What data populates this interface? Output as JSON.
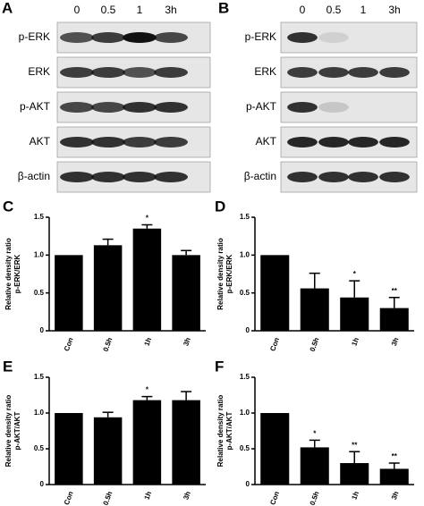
{
  "panels": {
    "A": {
      "label": "A",
      "lanes": [
        "0",
        "0.5",
        "1",
        "3h"
      ],
      "rows": [
        "p-ERK",
        "ERK",
        "p-AKT",
        "AKT",
        "β-actin"
      ]
    },
    "B": {
      "label": "B",
      "lanes": [
        "0",
        "0.5",
        "1",
        "3h"
      ],
      "rows": [
        "p-ERK",
        "ERK",
        "p-AKT",
        "AKT",
        "β-actin"
      ]
    }
  },
  "chart_data": [
    {
      "type": "bar",
      "panel": "C",
      "ylabel": [
        "Relative density ratio",
        "p-ERK/ERK"
      ],
      "categories": [
        "Con",
        "0.5h",
        "1h",
        "3h"
      ],
      "values": [
        1.0,
        1.13,
        1.35,
        1.0
      ],
      "errors": [
        0,
        0.08,
        0.05,
        0.06
      ],
      "annotations": [
        null,
        null,
        "*",
        null
      ],
      "color": "#000000",
      "ylim": [
        0,
        1.5
      ],
      "yticks": [
        0,
        0.5,
        {
          "value": 1.0,
          "label": "1.0"
        },
        1.5
      ]
    },
    {
      "type": "bar",
      "panel": "D",
      "ylabel": [
        "Relative density ratio",
        "p-ERK/ERK"
      ],
      "categories": [
        "Con",
        "0.5h",
        "1h",
        "3h"
      ],
      "values": [
        1.0,
        0.56,
        0.44,
        0.3
      ],
      "errors": [
        0,
        0.2,
        0.22,
        0.14
      ],
      "annotations": [
        null,
        null,
        "*",
        "**"
      ],
      "color": "#000000",
      "ylim": [
        0,
        1.5
      ],
      "yticks": [
        0,
        0.5,
        {
          "value": 1.0,
          "label": "1.0"
        },
        1.5
      ]
    },
    {
      "type": "bar",
      "panel": "E",
      "ylabel": [
        "Relative density ratio",
        "p-AKT/AKT"
      ],
      "categories": [
        "Con",
        "0.5h",
        "1h",
        "3h"
      ],
      "values": [
        1.0,
        0.94,
        1.18,
        1.18
      ],
      "errors": [
        0,
        0.07,
        0.05,
        0.12
      ],
      "annotations": [
        null,
        null,
        "*",
        null
      ],
      "color": "#000000",
      "ylim": [
        0,
        1.5
      ],
      "yticks": [
        0,
        0.5,
        {
          "value": 1.0,
          "label": "1.0"
        },
        1.5
      ]
    },
    {
      "type": "bar",
      "panel": "F",
      "ylabel": [
        "Relative density ratio",
        "p-AKT/AKT"
      ],
      "categories": [
        "Con",
        "0.5h",
        "1h",
        "3h"
      ],
      "values": [
        1.0,
        0.52,
        0.3,
        0.22
      ],
      "errors": [
        0,
        0.1,
        0.16,
        0.08
      ],
      "annotations": [
        null,
        "*",
        "**",
        "**"
      ],
      "color": "#000000",
      "ylim": [
        0,
        1.5
      ],
      "yticks": [
        0,
        0.5,
        {
          "value": 1.0,
          "label": "1.0"
        },
        1.5
      ]
    }
  ]
}
